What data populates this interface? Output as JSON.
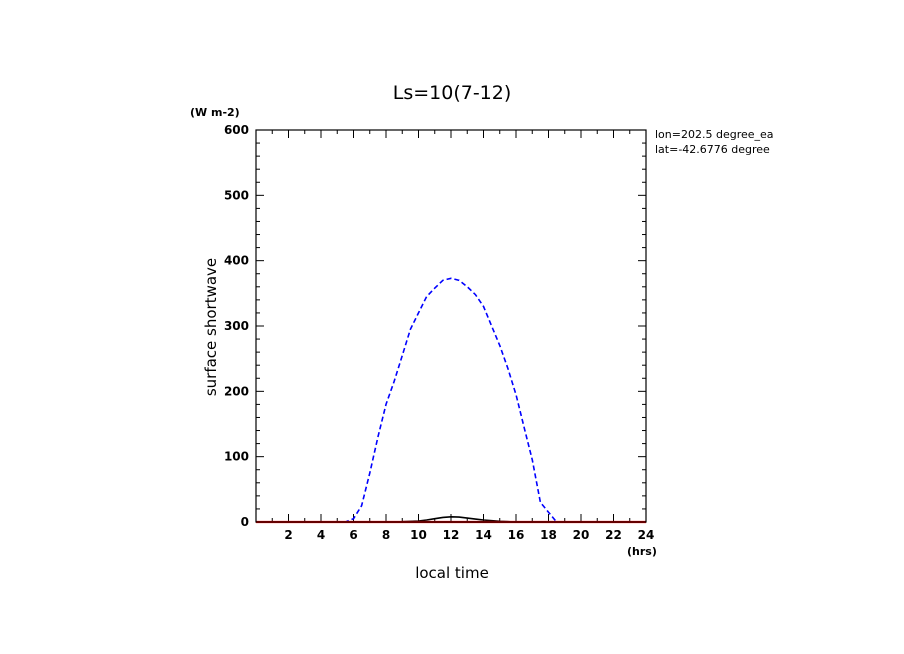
{
  "chart_data": {
    "type": "line",
    "title": "Ls=10(7-12)",
    "xlabel": "local time",
    "ylabel": "surface shortwave",
    "x_unit": "(hrs)",
    "y_unit": "(W m-2)",
    "annotations": [
      "lon=202.5 degree_ea",
      "lat=-42.6776 degree"
    ],
    "xlim": [
      0,
      24
    ],
    "ylim": [
      0,
      600
    ],
    "x_ticks": [
      2,
      4,
      6,
      8,
      10,
      12,
      14,
      16,
      18,
      20,
      22,
      24
    ],
    "y_ticks": [
      0,
      100,
      200,
      300,
      400,
      500,
      600
    ],
    "grid": false,
    "series": [
      {
        "color": "#0000ff",
        "style": "dashed",
        "x": [
          0,
          1,
          2,
          3,
          4,
          5,
          5.5,
          6,
          6.5,
          7,
          7.5,
          8,
          8.5,
          9,
          9.5,
          10,
          10.5,
          11,
          11.5,
          12,
          12.5,
          13,
          13.5,
          14,
          14.5,
          15,
          15.5,
          16,
          16.5,
          17,
          17.5,
          18,
          18.5,
          19,
          20,
          21,
          22,
          23,
          24
        ],
        "y": [
          0,
          0,
          0,
          0,
          0,
          0,
          0,
          5,
          25,
          75,
          130,
          180,
          215,
          255,
          295,
          320,
          345,
          358,
          370,
          373,
          370,
          360,
          348,
          330,
          300,
          270,
          235,
          195,
          145,
          95,
          30,
          15,
          0,
          0,
          0,
          0,
          0,
          0,
          0
        ]
      },
      {
        "color": "#000000",
        "style": "solid",
        "x": [
          0,
          8,
          9,
          10,
          10.5,
          11,
          11.5,
          12,
          12.5,
          13,
          13.5,
          14,
          15,
          16,
          24
        ],
        "y": [
          0,
          0,
          0.5,
          1.5,
          3,
          5,
          7,
          8,
          7.5,
          6,
          4.5,
          3,
          1,
          0,
          0
        ]
      },
      {
        "color": "#ff0000",
        "style": "solid",
        "x": [
          0,
          24
        ],
        "y": [
          0,
          0
        ]
      }
    ]
  }
}
